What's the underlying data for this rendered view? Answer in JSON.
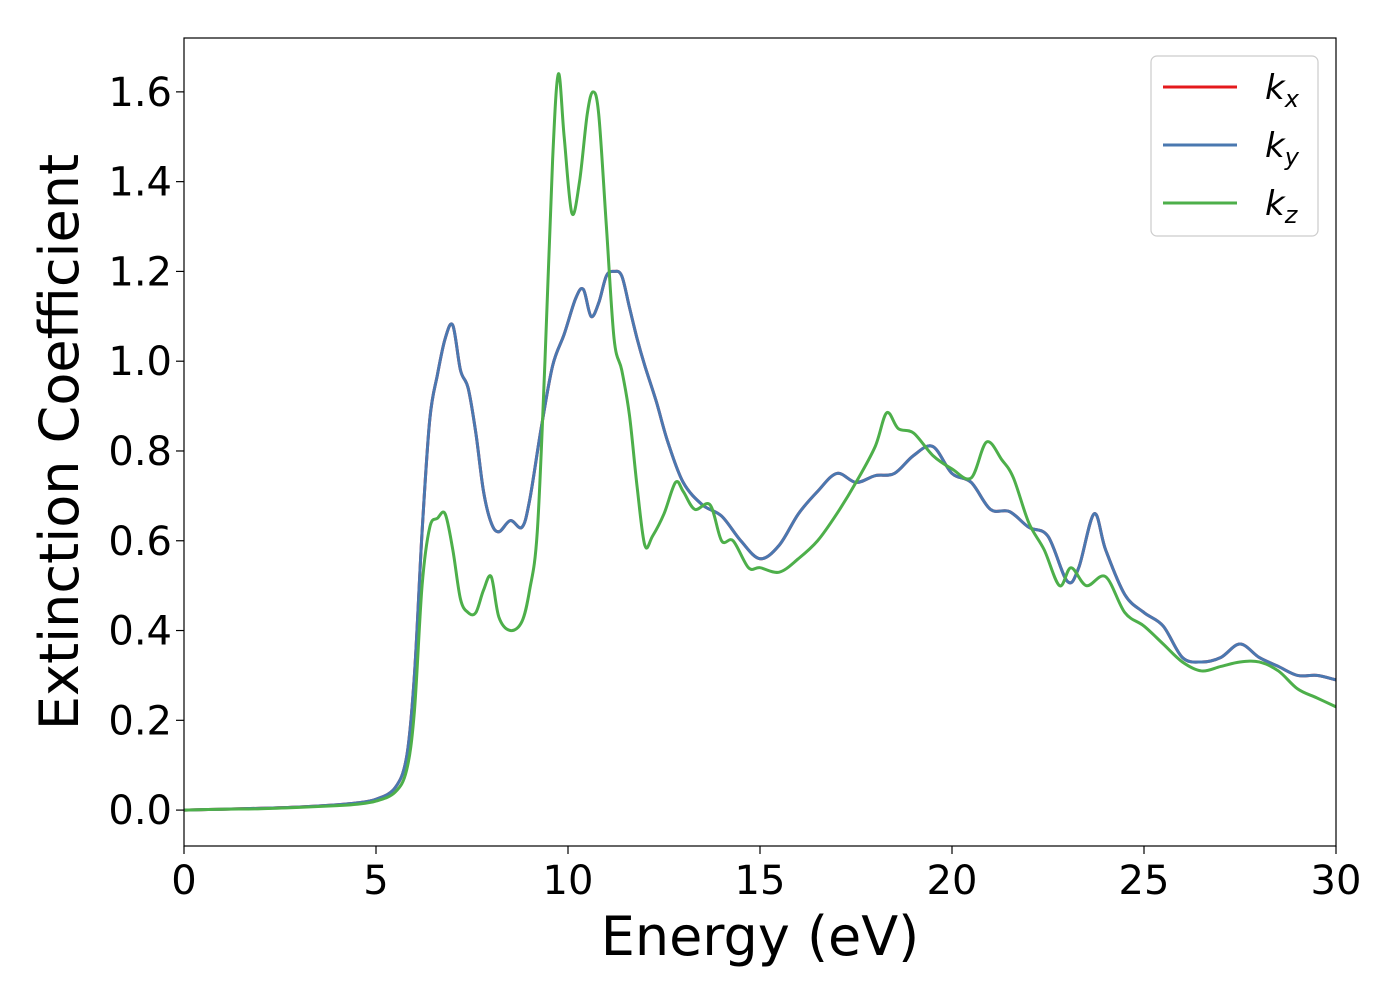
{
  "chart_data": {
    "type": "line",
    "title": "",
    "xlabel": "Energy (eV)",
    "ylabel": "Extinction Coefficient",
    "xlim": [
      0,
      30
    ],
    "ylim": [
      -0.08,
      1.72
    ],
    "xticks": [
      0,
      5,
      10,
      15,
      20,
      25,
      30
    ],
    "xtick_labels": [
      "0",
      "5",
      "10",
      "15",
      "20",
      "25",
      "30"
    ],
    "yticks": [
      0.0,
      0.2,
      0.4,
      0.6,
      0.8,
      1.0,
      1.2,
      1.4,
      1.6
    ],
    "ytick_labels": [
      "0.0",
      "0.2",
      "0.4",
      "0.6",
      "0.8",
      "1.0",
      "1.2",
      "1.4",
      "1.6"
    ],
    "grid": false,
    "legend_position": "top-right",
    "series": [
      {
        "name": "k_x",
        "legend_base": "k",
        "legend_sub": "x",
        "color": "#e41a1c",
        "x": [
          0,
          1,
          2,
          3,
          4,
          4.5,
          5,
          5.5,
          5.8,
          6.0,
          6.2,
          6.4,
          6.6,
          6.8,
          7.0,
          7.2,
          7.4,
          7.6,
          7.8,
          8.0,
          8.2,
          8.5,
          8.8,
          9.0,
          9.3,
          9.6,
          9.9,
          10.2,
          10.4,
          10.6,
          10.8,
          11.0,
          11.2,
          11.4,
          11.6,
          11.8,
          12.0,
          12.3,
          12.6,
          13.0,
          13.5,
          14.0,
          14.5,
          15.0,
          15.5,
          16.0,
          16.5,
          17.0,
          17.5,
          18.0,
          18.5,
          19.0,
          19.5,
          20.0,
          20.5,
          21.0,
          21.5,
          22.0,
          22.5,
          23.0,
          23.3,
          23.7,
          24.0,
          24.5,
          25.0,
          25.5,
          26.0,
          26.5,
          27.0,
          27.5,
          28.0,
          28.5,
          29.0,
          29.5,
          30.0
        ],
        "values": [
          0.0,
          0.002,
          0.004,
          0.007,
          0.012,
          0.016,
          0.024,
          0.05,
          0.12,
          0.3,
          0.62,
          0.87,
          0.97,
          1.05,
          1.08,
          0.98,
          0.94,
          0.84,
          0.71,
          0.64,
          0.62,
          0.645,
          0.63,
          0.69,
          0.85,
          0.99,
          1.06,
          1.14,
          1.16,
          1.1,
          1.13,
          1.19,
          1.2,
          1.19,
          1.12,
          1.05,
          0.99,
          0.91,
          0.82,
          0.73,
          0.68,
          0.655,
          0.6,
          0.56,
          0.59,
          0.66,
          0.71,
          0.75,
          0.73,
          0.745,
          0.75,
          0.79,
          0.81,
          0.75,
          0.73,
          0.67,
          0.665,
          0.63,
          0.61,
          0.51,
          0.54,
          0.66,
          0.58,
          0.48,
          0.44,
          0.41,
          0.34,
          0.33,
          0.34,
          0.37,
          0.34,
          0.32,
          0.3,
          0.3,
          0.29
        ]
      },
      {
        "name": "k_y",
        "legend_base": "k",
        "legend_sub": "y",
        "color": "#4a78b0",
        "x": [
          0,
          1,
          2,
          3,
          4,
          4.5,
          5,
          5.5,
          5.8,
          6.0,
          6.2,
          6.4,
          6.6,
          6.8,
          7.0,
          7.2,
          7.4,
          7.6,
          7.8,
          8.0,
          8.2,
          8.5,
          8.8,
          9.0,
          9.3,
          9.6,
          9.9,
          10.2,
          10.4,
          10.6,
          10.8,
          11.0,
          11.2,
          11.4,
          11.6,
          11.8,
          12.0,
          12.3,
          12.6,
          13.0,
          13.5,
          14.0,
          14.5,
          15.0,
          15.5,
          16.0,
          16.5,
          17.0,
          17.5,
          18.0,
          18.5,
          19.0,
          19.5,
          20.0,
          20.5,
          21.0,
          21.5,
          22.0,
          22.5,
          23.0,
          23.3,
          23.7,
          24.0,
          24.5,
          25.0,
          25.5,
          26.0,
          26.5,
          27.0,
          27.5,
          28.0,
          28.5,
          29.0,
          29.5,
          30.0
        ],
        "values": [
          0.0,
          0.002,
          0.004,
          0.007,
          0.012,
          0.016,
          0.024,
          0.05,
          0.12,
          0.3,
          0.62,
          0.87,
          0.97,
          1.05,
          1.08,
          0.98,
          0.94,
          0.84,
          0.71,
          0.64,
          0.62,
          0.645,
          0.63,
          0.69,
          0.85,
          0.99,
          1.06,
          1.14,
          1.16,
          1.1,
          1.13,
          1.19,
          1.2,
          1.19,
          1.12,
          1.05,
          0.99,
          0.91,
          0.82,
          0.73,
          0.68,
          0.655,
          0.6,
          0.56,
          0.59,
          0.66,
          0.71,
          0.75,
          0.73,
          0.745,
          0.75,
          0.79,
          0.81,
          0.75,
          0.73,
          0.67,
          0.665,
          0.63,
          0.61,
          0.51,
          0.54,
          0.66,
          0.58,
          0.48,
          0.44,
          0.41,
          0.34,
          0.33,
          0.34,
          0.37,
          0.34,
          0.32,
          0.3,
          0.3,
          0.29
        ]
      },
      {
        "name": "k_z",
        "legend_base": "k",
        "legend_sub": "z",
        "color": "#4daf4a",
        "x": [
          0,
          1,
          2,
          3,
          4,
          4.5,
          5,
          5.5,
          5.8,
          6.0,
          6.2,
          6.4,
          6.6,
          6.8,
          7.0,
          7.2,
          7.4,
          7.6,
          7.8,
          8.0,
          8.2,
          8.5,
          8.8,
          9.0,
          9.2,
          9.4,
          9.6,
          9.75,
          9.9,
          10.1,
          10.3,
          10.5,
          10.65,
          10.8,
          11.0,
          11.2,
          11.4,
          11.6,
          11.8,
          12.0,
          12.2,
          12.5,
          12.8,
          13.0,
          13.3,
          13.7,
          14.0,
          14.3,
          14.7,
          15.0,
          15.5,
          16.0,
          16.5,
          17.0,
          17.5,
          18.0,
          18.3,
          18.6,
          19.0,
          19.5,
          20.0,
          20.5,
          20.9,
          21.3,
          21.6,
          22.0,
          22.4,
          22.8,
          23.1,
          23.5,
          24.0,
          24.5,
          25.0,
          25.5,
          26.0,
          26.5,
          27.0,
          27.5,
          28.0,
          28.5,
          29.0,
          29.5,
          30.0
        ],
        "values": [
          0.0,
          0.002,
          0.003,
          0.006,
          0.01,
          0.013,
          0.02,
          0.04,
          0.09,
          0.22,
          0.5,
          0.63,
          0.65,
          0.66,
          0.58,
          0.47,
          0.44,
          0.44,
          0.49,
          0.52,
          0.43,
          0.4,
          0.42,
          0.49,
          0.62,
          1.0,
          1.45,
          1.64,
          1.5,
          1.33,
          1.4,
          1.55,
          1.6,
          1.55,
          1.3,
          1.05,
          0.98,
          0.88,
          0.72,
          0.59,
          0.61,
          0.66,
          0.73,
          0.71,
          0.67,
          0.68,
          0.6,
          0.6,
          0.54,
          0.54,
          0.53,
          0.56,
          0.6,
          0.66,
          0.73,
          0.81,
          0.885,
          0.85,
          0.84,
          0.79,
          0.76,
          0.74,
          0.82,
          0.78,
          0.74,
          0.64,
          0.58,
          0.5,
          0.54,
          0.5,
          0.52,
          0.44,
          0.41,
          0.37,
          0.33,
          0.31,
          0.32,
          0.33,
          0.33,
          0.31,
          0.27,
          0.25,
          0.23
        ]
      }
    ]
  }
}
